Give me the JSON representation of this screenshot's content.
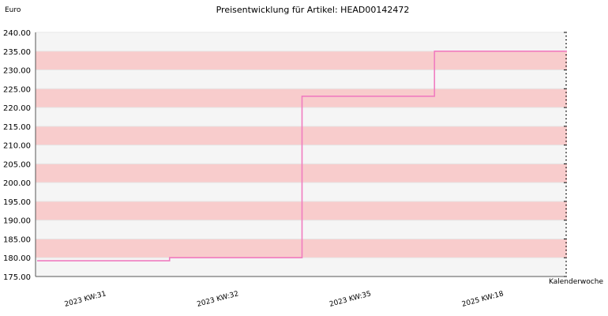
{
  "chart_data": {
    "type": "line",
    "step": true,
    "title": "Preisentwicklung für Artikel: HEAD00142472",
    "ylabel": "Euro",
    "xlabel": "Kalenderwoche",
    "ylim": [
      175,
      240
    ],
    "y_ticks": [
      "175.00",
      "180.00",
      "185.00",
      "190.00",
      "195.00",
      "200.00",
      "205.00",
      "210.00",
      "215.00",
      "220.00",
      "225.00",
      "230.00",
      "235.00",
      "240.00"
    ],
    "categories": [
      "2023 KW:31",
      "2023 KW:32",
      "2023 KW:35",
      "2025 KW:18"
    ],
    "series": [
      {
        "values": [
          179.2,
          180.0,
          223.0,
          235.0
        ]
      }
    ],
    "grid": true,
    "colors": {
      "line": "#f07cc0",
      "band_light": "#f5f5f5",
      "band_pink": "#f8cccc",
      "axis": "#555555",
      "gridline": "#ffffff"
    }
  }
}
